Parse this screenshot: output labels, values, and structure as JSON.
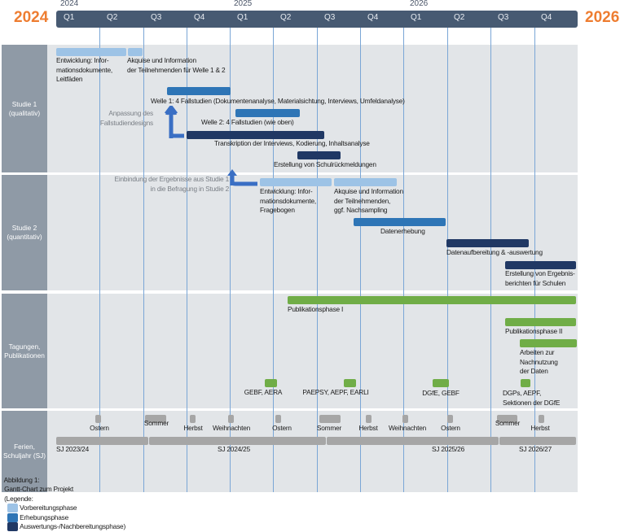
{
  "header": {
    "start_year": "2024",
    "end_year": "2026",
    "year_labels": [
      "2024",
      "2025",
      "2026"
    ],
    "quarters": [
      "Q1",
      "Q2",
      "Q3",
      "Q4",
      "Q1",
      "Q2",
      "Q3",
      "Q4",
      "Q1",
      "Q2",
      "Q3",
      "Q4"
    ]
  },
  "rows": {
    "studie1": "Studie 1\n(qualitativ)",
    "studie2": "Studie 2\n(quantitativ)",
    "tagungen": "Tagungen,\nPublikationen",
    "ferien": "Ferien,\nSchuljahr (SJ)"
  },
  "studie1": {
    "entwicklung": "Entwicklung: Infor-\nmationsdokumente,\nLeitfäden",
    "akquise": "Akquise und Information\nder Teilnehmenden für Welle 1 & 2",
    "welle1": "Welle 1: 4 Fallstudien (Dokumentenanalyse, Materialsichtung, Interviews, Umfeldanalyse)",
    "anpassung": "Anpassung des\nFallstudiendesigns",
    "welle2": "Welle 2: 4 Fallstudien (wie oben)",
    "transkription": "Transkription der Interviews, Kodierung, Inhaltsanalyse",
    "schulrueck": "Erstellung von Schulrückmeldungen"
  },
  "studie2": {
    "einbindung": "Einbindung der Ergebnisse aus Studie 1\nin die Befragung in Studie 2",
    "entwicklung": "Entwicklung: Infor-\nmationsdokumente,\nFragebogen",
    "akquise": "Akquise und Information\nder Teilnehmenden,\nggf. Nachsampling",
    "datenerhebung": "Datenerhebung",
    "auswertung": "Datenaufbereitung & -auswertung",
    "berichte": "Erstellung von Ergebnis-\nberichten für Schulen"
  },
  "tagungen": {
    "pub1": "Publikationsphase I",
    "pub2": "Publikationsphase II",
    "nachnutzung": "Arbeiten zur\nNachnutzung\nder Daten",
    "conf": [
      "GEBF, AERA",
      "PAEPSY, AEPF, EARLI",
      "DGfE, GEBF",
      "DGPs, AEPF,\nSektionen der DGfE"
    ]
  },
  "ferien": {
    "holidays": [
      "Ostern",
      "Sommer",
      "Herbst",
      "Weihnachten",
      "Ostern",
      "Sommer",
      "Herbst",
      "Weihnachten",
      "Ostern",
      "Sommer",
      "Herbst"
    ],
    "schuljahre": [
      "SJ 2023/24",
      "SJ 2024/25",
      "SJ 2025/26",
      "SJ 2026/27"
    ]
  },
  "caption": {
    "label": "Abbildung 1:",
    "title": "Gantt-Chart zum Projekt",
    "legend_open": "(Legende:",
    "legend": [
      "Vorbereitungsphase",
      "Erhebungsphase",
      "Auswertungs-/Nachbereitungsphase)"
    ]
  },
  "colors": {
    "prep": "#9dc3e6",
    "survey": "#2e75b6",
    "analysis": "#203864",
    "publication": "#70ad47",
    "accent": "#ee7d31"
  }
}
